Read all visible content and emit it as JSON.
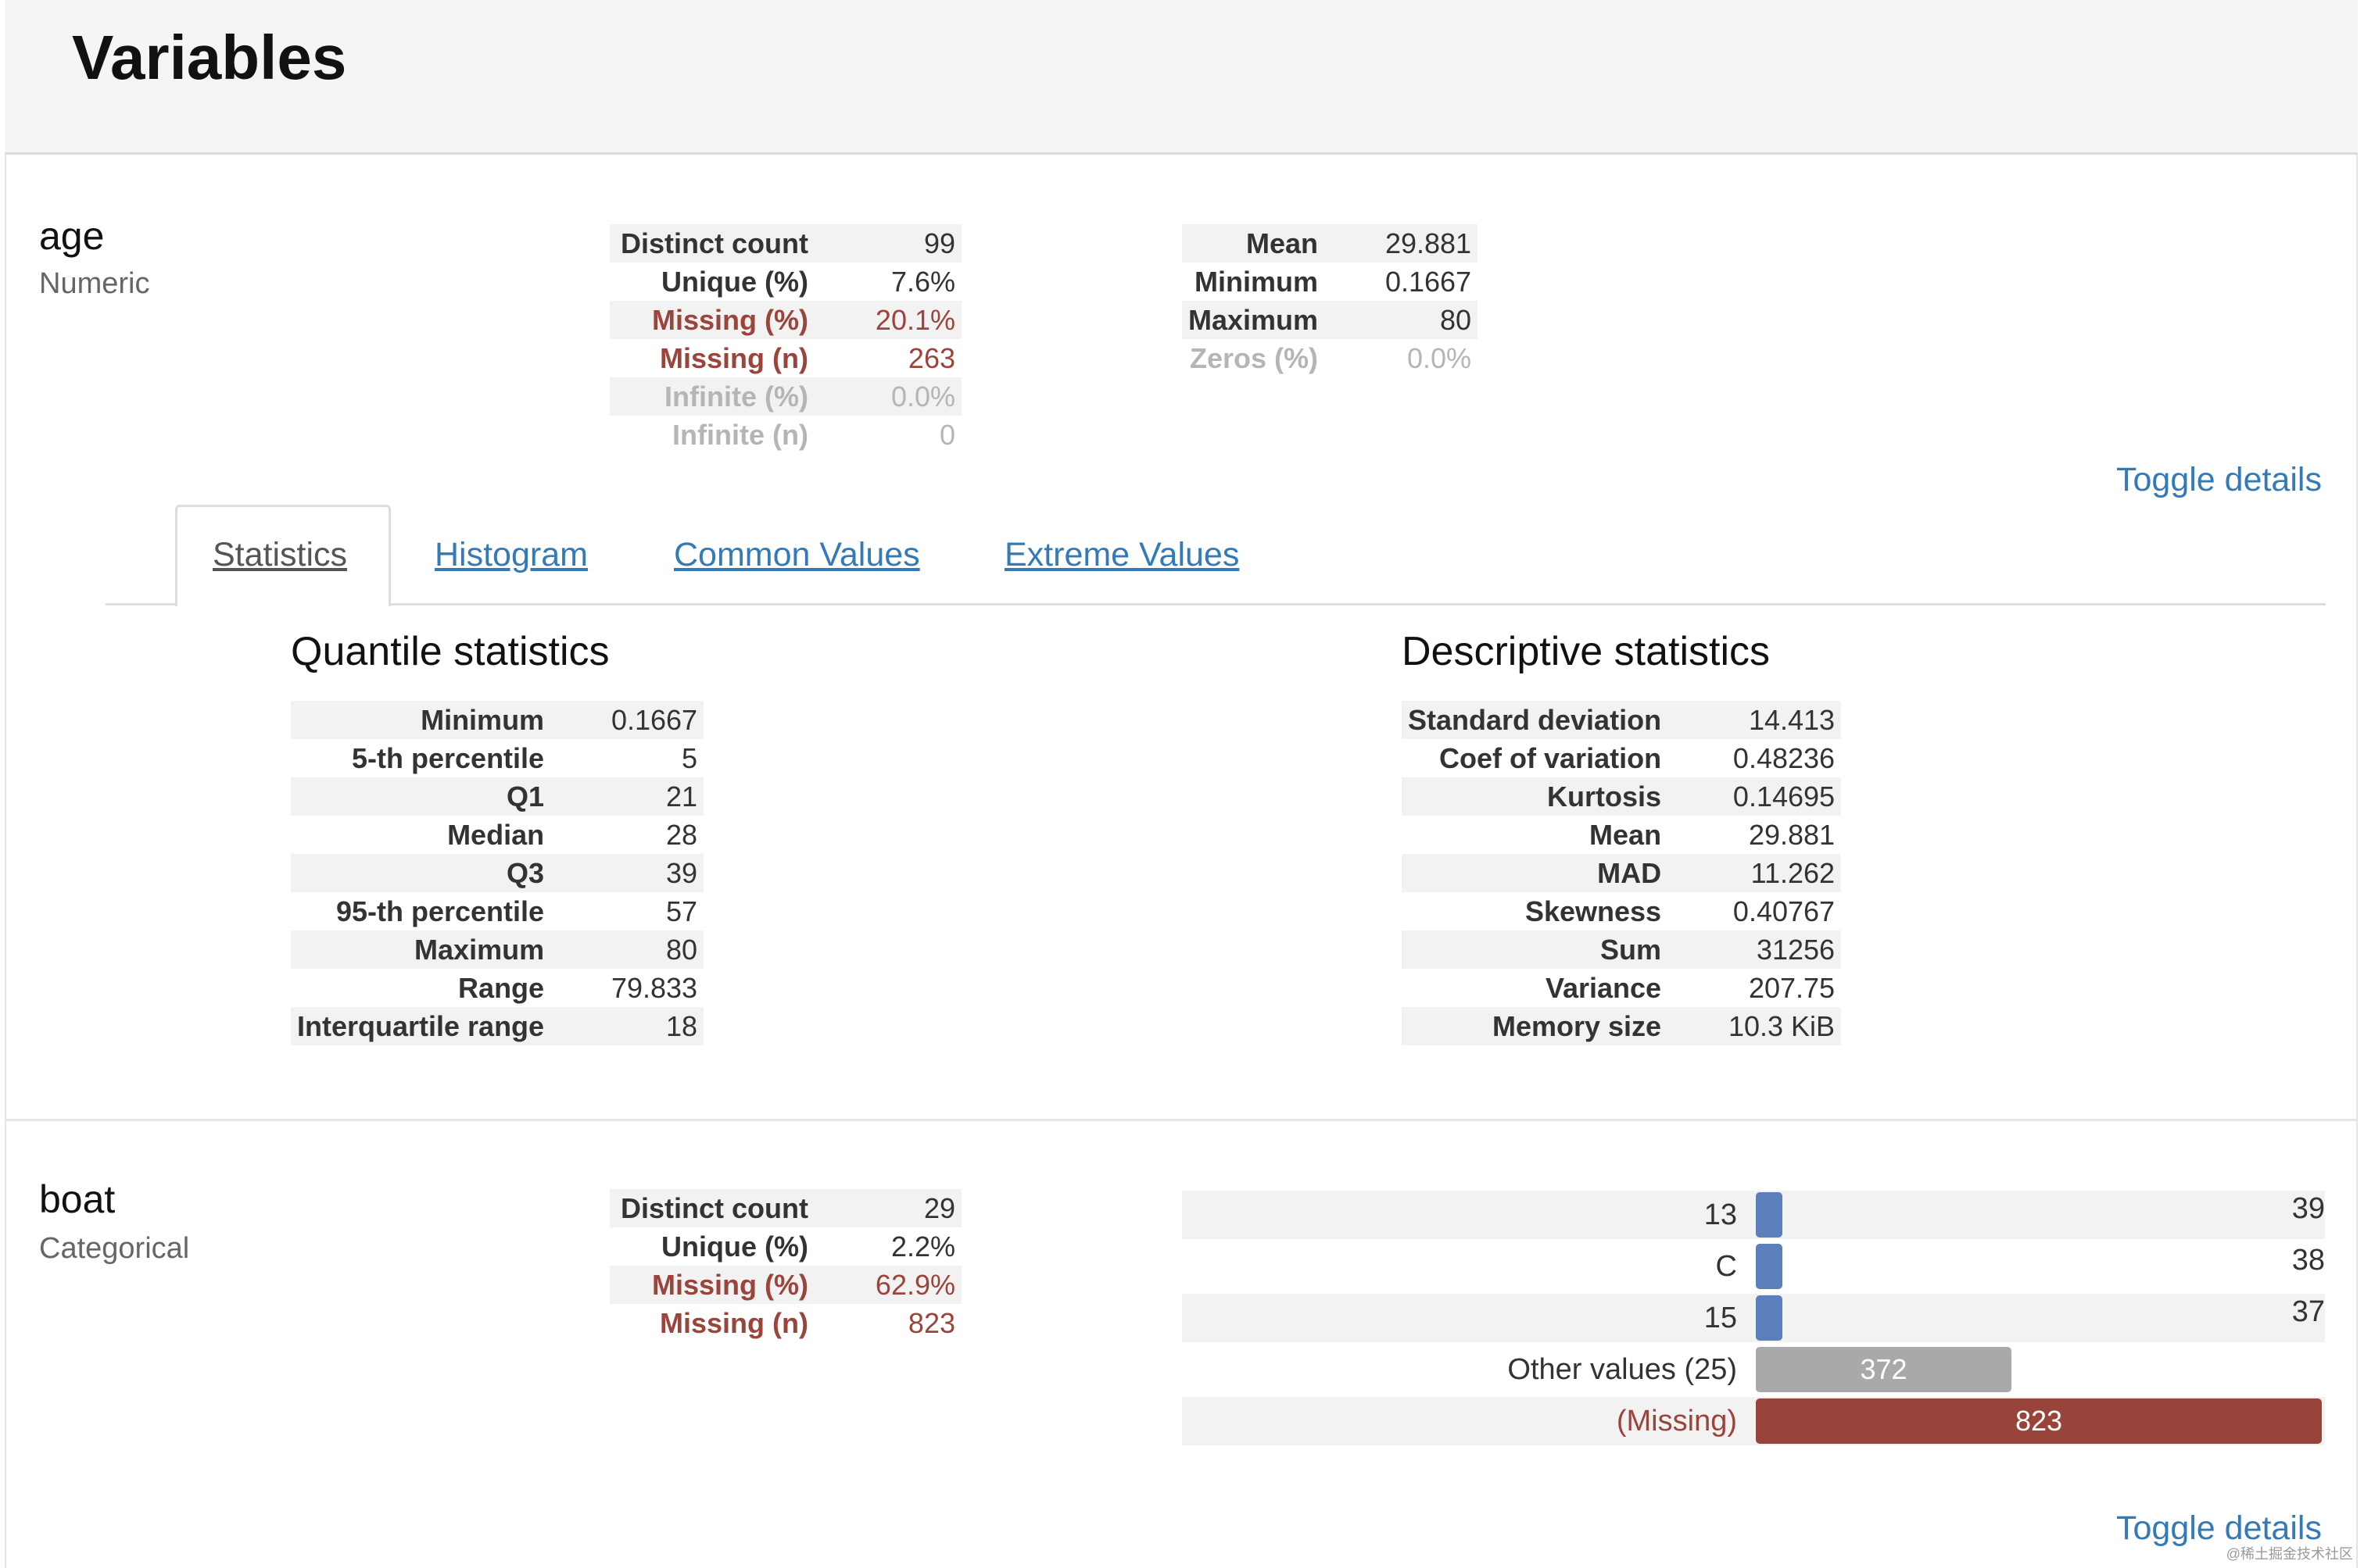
{
  "page": {
    "title": "Variables",
    "watermark": "@稀土掘金技术社区"
  },
  "colors": {
    "link": "#337ab7",
    "alert": "#9b443b",
    "bar_blue": "#5b7fba",
    "bar_grey": "#a9a9ab",
    "bar_missing": "#99443b"
  },
  "age": {
    "name": "age",
    "type": "Numeric",
    "overview_left": [
      {
        "key": "Distinct count",
        "value": "99",
        "state": "normal"
      },
      {
        "key": "Unique (%)",
        "value": "7.6%",
        "state": "normal"
      },
      {
        "key": "Missing (%)",
        "value": "20.1%",
        "state": "alert"
      },
      {
        "key": "Missing (n)",
        "value": "263",
        "state": "alert"
      },
      {
        "key": "Infinite (%)",
        "value": "0.0%",
        "state": "dim"
      },
      {
        "key": "Infinite (n)",
        "value": "0",
        "state": "dim"
      }
    ],
    "overview_right": [
      {
        "key": "Mean",
        "value": "29.881",
        "state": "normal"
      },
      {
        "key": "Minimum",
        "value": "0.1667",
        "state": "normal"
      },
      {
        "key": "Maximum",
        "value": "80",
        "state": "normal"
      },
      {
        "key": "Zeros (%)",
        "value": "0.0%",
        "state": "dim"
      }
    ],
    "toggle_label": "Toggle details",
    "tabs": [
      {
        "label": "Statistics",
        "active": true
      },
      {
        "label": "Histogram",
        "active": false
      },
      {
        "label": "Common Values",
        "active": false
      },
      {
        "label": "Extreme Values",
        "active": false
      }
    ],
    "quantile": {
      "title": "Quantile statistics",
      "rows": [
        {
          "key": "Minimum",
          "value": "0.1667"
        },
        {
          "key": "5-th percentile",
          "value": "5"
        },
        {
          "key": "Q1",
          "value": "21"
        },
        {
          "key": "Median",
          "value": "28"
        },
        {
          "key": "Q3",
          "value": "39"
        },
        {
          "key": "95-th percentile",
          "value": "57"
        },
        {
          "key": "Maximum",
          "value": "80"
        },
        {
          "key": "Range",
          "value": "79.833"
        },
        {
          "key": "Interquartile range",
          "value": "18"
        }
      ]
    },
    "descriptive": {
      "title": "Descriptive statistics",
      "rows": [
        {
          "key": "Standard deviation",
          "value": "14.413"
        },
        {
          "key": "Coef of variation",
          "value": "0.48236"
        },
        {
          "key": "Kurtosis",
          "value": "0.14695"
        },
        {
          "key": "Mean",
          "value": "29.881"
        },
        {
          "key": "MAD",
          "value": "11.262"
        },
        {
          "key": "Skewness",
          "value": "0.40767"
        },
        {
          "key": "Sum",
          "value": "31256"
        },
        {
          "key": "Variance",
          "value": "207.75"
        },
        {
          "key": "Memory size",
          "value": "10.3 KiB"
        }
      ]
    }
  },
  "boat": {
    "name": "boat",
    "type": "Categorical",
    "overview_left": [
      {
        "key": "Distinct count",
        "value": "29",
        "state": "normal"
      },
      {
        "key": "Unique (%)",
        "value": "2.2%",
        "state": "normal"
      },
      {
        "key": "Missing (%)",
        "value": "62.9%",
        "state": "alert"
      },
      {
        "key": "Missing (n)",
        "value": "823",
        "state": "alert"
      }
    ],
    "frequencies": {
      "max_count": 823,
      "rows": [
        {
          "label": "13",
          "count": 39,
          "kind": "value",
          "count_display": "39",
          "label_inside": false
        },
        {
          "label": "C",
          "count": 38,
          "kind": "value",
          "count_display": "38",
          "label_inside": false
        },
        {
          "label": "15",
          "count": 37,
          "kind": "value",
          "count_display": "37",
          "label_inside": false
        },
        {
          "label": "Other values (25)",
          "count": 372,
          "kind": "other",
          "count_display": "372",
          "label_inside": true
        },
        {
          "label": "(Missing)",
          "count": 823,
          "kind": "missing",
          "count_display": "823",
          "label_inside": true
        }
      ]
    },
    "toggle_label": "Toggle details"
  }
}
